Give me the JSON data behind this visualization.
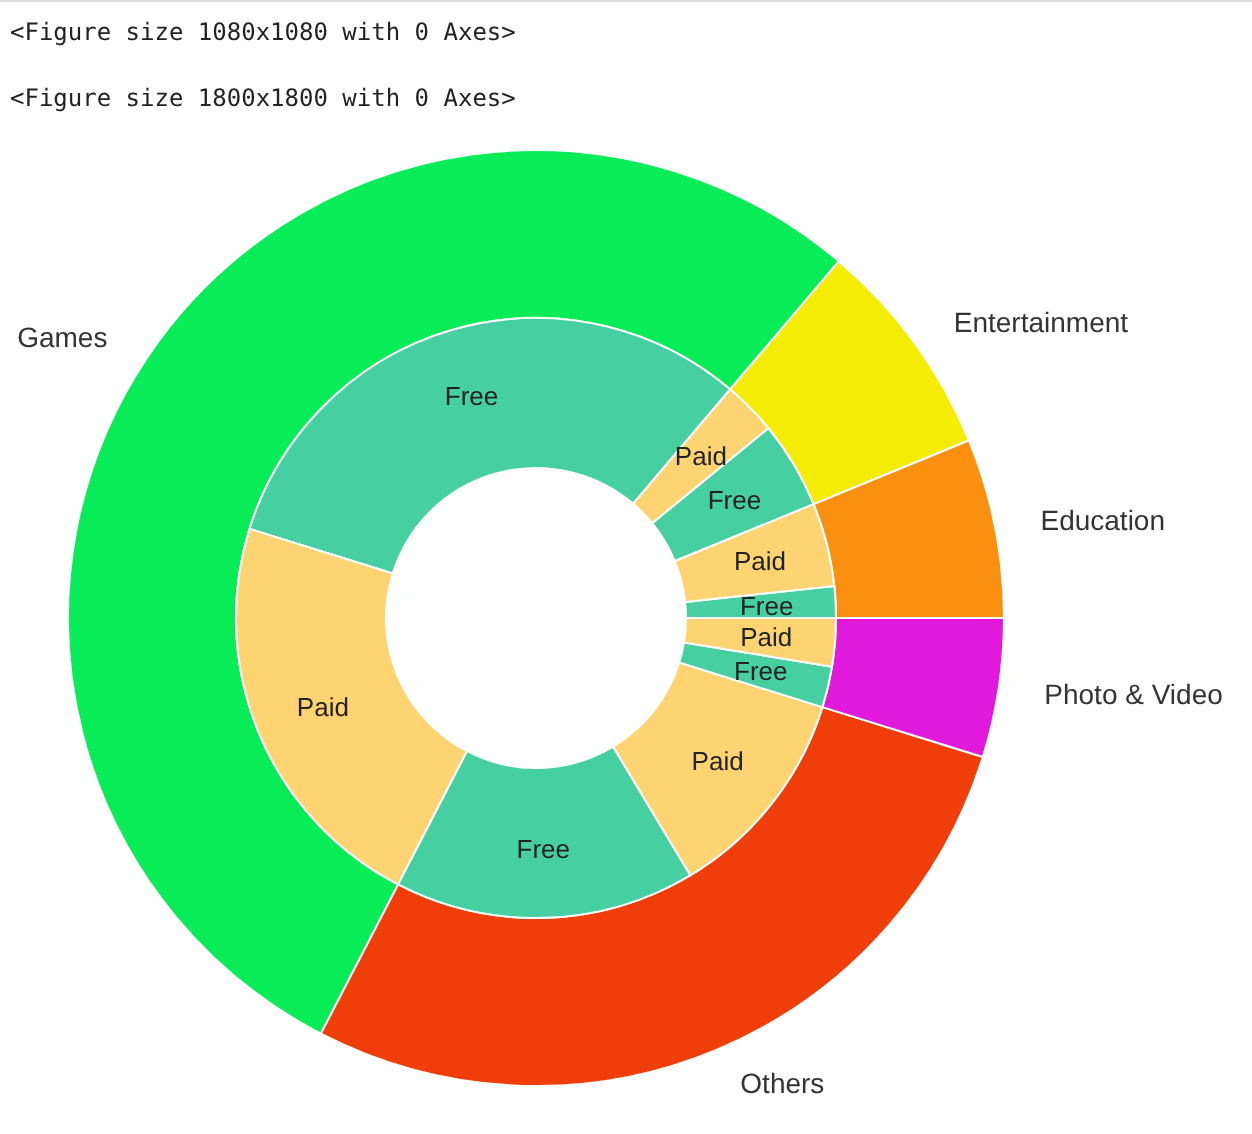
{
  "chart_data": [
    {
      "type": "donut",
      "categories": [
        "Education",
        "Entertainment",
        "Games",
        "Others",
        "Photo & Video"
      ],
      "values": [
        6.2,
        7.6,
        53.6,
        27.8,
        4.8
      ],
      "colors": [
        "#fb8f0f",
        "#f5ec05",
        "#08ec58",
        "#f03e0a",
        "#e019dc"
      ],
      "annotations": [
        "<Figure size 1080x1080 with 0 Axes>",
        "<Figure size 1800x1800 with 0 Axes>"
      ]
    },
    {
      "type": "donut",
      "categories": [
        "Free",
        "Paid",
        "Free",
        "Paid",
        "Free",
        "Paid",
        "Free",
        "Paid",
        "Free",
        "Paid"
      ],
      "values": [
        1.7,
        4.5,
        4.7,
        2.9,
        31.4,
        22.2,
        16.2,
        11.6,
        2.2,
        2.6
      ],
      "colors": [
        "#46cfa1",
        "#fed472",
        "#46cfa1",
        "#fed472",
        "#46cfa1",
        "#fed472",
        "#46cfa1",
        "#fed472",
        "#46cfa1",
        "#fed472"
      ]
    }
  ]
}
